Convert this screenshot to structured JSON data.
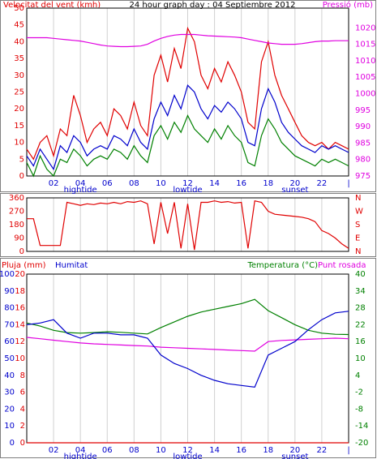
{
  "chart_data": [
    {
      "type": "line",
      "title": "24 hour graph day : 04 Septiembre 2012",
      "ylabel": "Velocitat del vent (kmh)",
      "y2label": "Pressió (mb)",
      "x": [
        0,
        0.5,
        1,
        1.5,
        2,
        2.5,
        3,
        3.5,
        4,
        4.5,
        5,
        5.5,
        6,
        6.5,
        7,
        7.5,
        8,
        8.5,
        9,
        9.5,
        10,
        10.5,
        11,
        11.5,
        12,
        12.5,
        13,
        13.5,
        14,
        14.5,
        15,
        15.5,
        16,
        16.5,
        17,
        17.5,
        18,
        18.5,
        19,
        19.5,
        20,
        20.5,
        21,
        21.5,
        22,
        22.5,
        23,
        23.5,
        24
      ],
      "xlim": [
        0,
        24
      ],
      "xticks": [
        {
          "value": 2,
          "label": "02"
        },
        {
          "value": 4,
          "label": "04"
        },
        {
          "value": 6,
          "label": "06"
        },
        {
          "value": 8,
          "label": "08"
        },
        {
          "value": 10,
          "label": "10"
        },
        {
          "value": 12,
          "label": "12"
        },
        {
          "value": 14,
          "label": "14"
        },
        {
          "value": 16,
          "label": "16"
        },
        {
          "value": 18,
          "label": "18"
        },
        {
          "value": 20,
          "label": "20"
        },
        {
          "value": 22,
          "label": "22"
        },
        {
          "value": 24,
          "label": "|"
        }
      ],
      "annotations": [
        {
          "text": "hightide",
          "x": 4
        },
        {
          "text": "lowtide",
          "x": 12
        },
        {
          "text": "sunset",
          "x": 20
        }
      ],
      "ylim": [
        0,
        50
      ],
      "yticks": [
        0,
        5,
        10,
        15,
        20,
        25,
        30,
        35,
        40,
        45,
        50
      ],
      "ycolor": "#e00000",
      "y2lim": [
        975,
        1026
      ],
      "y2ticks": [
        975,
        980,
        985,
        990,
        995,
        1000,
        1005,
        1010,
        1015,
        1020
      ],
      "y2color": "#e000e0",
      "grid": true,
      "series": [
        {
          "color": "#e00000",
          "values": [
            8,
            5,
            10,
            12,
            6,
            14,
            12,
            24,
            18,
            10,
            14,
            16,
            12,
            20,
            18,
            14,
            22,
            15,
            12,
            30,
            36,
            28,
            38,
            32,
            44,
            40,
            30,
            26,
            32,
            28,
            34,
            30,
            25,
            16,
            14,
            34,
            40,
            30,
            24,
            20,
            16,
            12,
            10,
            9,
            10,
            8,
            10,
            9,
            8
          ]
        },
        {
          "color": "#008000",
          "values": [
            4,
            0,
            6,
            2,
            0,
            5,
            4,
            8,
            6,
            3,
            5,
            6,
            5,
            8,
            7,
            5,
            9,
            6,
            4,
            12,
            15,
            11,
            16,
            13,
            18,
            14,
            12,
            10,
            14,
            11,
            15,
            12,
            10,
            4,
            3,
            12,
            17,
            14,
            10,
            8,
            6,
            5,
            4,
            3,
            5,
            4,
            5,
            4,
            3
          ]
        },
        {
          "color": "#0000cc",
          "values": [
            6,
            3,
            8,
            5,
            2,
            9,
            7,
            12,
            10,
            6,
            8,
            9,
            8,
            12,
            11,
            9,
            14,
            10,
            8,
            17,
            22,
            18,
            24,
            20,
            27,
            25,
            20,
            17,
            21,
            19,
            22,
            20,
            17,
            10,
            9,
            20,
            26,
            22,
            16,
            13,
            11,
            9,
            8,
            7,
            9,
            8,
            9,
            8,
            7
          ]
        },
        {
          "color": "#e000e0",
          "axis": "y2",
          "values": [
            1017,
            1017,
            1017,
            1017,
            1016.8,
            1016.6,
            1016.4,
            1016.2,
            1016,
            1015.6,
            1015.2,
            1014.8,
            1014.5,
            1014.4,
            1014.3,
            1014.3,
            1014.4,
            1014.5,
            1015,
            1016,
            1016.8,
            1017.4,
            1017.8,
            1018,
            1018,
            1018,
            1017.8,
            1017.6,
            1017.5,
            1017.4,
            1017.3,
            1017.2,
            1017,
            1016.6,
            1016.2,
            1015.8,
            1015.4,
            1015.2,
            1015,
            1015,
            1015,
            1015.2,
            1015.5,
            1015.8,
            1016,
            1016,
            1016.1,
            1016.1,
            1016.1
          ]
        }
      ]
    },
    {
      "type": "line",
      "x": [
        0,
        0.5,
        1,
        1.5,
        2,
        2.5,
        3,
        3.5,
        4,
        4.5,
        5,
        5.5,
        6,
        6.5,
        7,
        7.5,
        8,
        8.5,
        9,
        9.5,
        10,
        10.5,
        11,
        11.5,
        12,
        12.5,
        13,
        13.5,
        14,
        14.5,
        15,
        15.5,
        16,
        16.5,
        17,
        17.5,
        18,
        18.5,
        19,
        19.5,
        20,
        20.5,
        21,
        21.5,
        22,
        22.5,
        23,
        23.5,
        24
      ],
      "xlim": [
        0,
        24
      ],
      "xticks": [
        {
          "value": 2,
          "label": "02"
        },
        {
          "value": 4,
          "label": "04"
        },
        {
          "value": 6,
          "label": "06"
        },
        {
          "value": 8,
          "label": "08"
        },
        {
          "value": 10,
          "label": "10"
        },
        {
          "value": 12,
          "label": "12"
        },
        {
          "value": 14,
          "label": "14"
        },
        {
          "value": 16,
          "label": "16"
        },
        {
          "value": 18,
          "label": "18"
        },
        {
          "value": 20,
          "label": "20"
        },
        {
          "value": 22,
          "label": "22"
        },
        {
          "value": 24,
          "label": "|"
        }
      ],
      "show_xtick_labels": false,
      "ylim": [
        0,
        360
      ],
      "yticks": [
        0,
        90,
        180,
        270,
        360
      ],
      "ycolor": "#e00000",
      "y2lim": [
        0,
        360
      ],
      "y2ticks": [
        {
          "value": 0,
          "label": "N"
        },
        {
          "value": 90,
          "label": "E"
        },
        {
          "value": 180,
          "label": "S"
        },
        {
          "value": 270,
          "label": "W"
        },
        {
          "value": 360,
          "label": "N"
        }
      ],
      "y2color": "#e00000",
      "grid": true,
      "series": [
        {
          "color": "#e00000",
          "values": [
            220,
            220,
            40,
            40,
            40,
            40,
            330,
            320,
            310,
            320,
            315,
            325,
            320,
            330,
            320,
            335,
            330,
            340,
            320,
            50,
            330,
            120,
            330,
            20,
            320,
            10,
            330,
            330,
            340,
            330,
            335,
            325,
            330,
            20,
            340,
            330,
            270,
            250,
            245,
            240,
            235,
            230,
            220,
            200,
            140,
            120,
            90,
            50,
            20
          ]
        }
      ]
    },
    {
      "type": "line",
      "ylabel": "Pluja (mm)",
      "ylabel2": "Humitat",
      "y2label": "Temperatura (°C)",
      "y2label2": "Punt rosada",
      "x": [
        0,
        1,
        2,
        3,
        4,
        5,
        6,
        7,
        8,
        9,
        10,
        11,
        12,
        13,
        14,
        15,
        16,
        17,
        18,
        19,
        20,
        21,
        22,
        23,
        24
      ],
      "xlim": [
        0,
        24
      ],
      "xticks": [
        {
          "value": 2,
          "label": "02"
        },
        {
          "value": 4,
          "label": "04"
        },
        {
          "value": 6,
          "label": "06"
        },
        {
          "value": 8,
          "label": "08"
        },
        {
          "value": 10,
          "label": "10"
        },
        {
          "value": 12,
          "label": "12"
        },
        {
          "value": 14,
          "label": "14"
        },
        {
          "value": 16,
          "label": "16"
        },
        {
          "value": 18,
          "label": "18"
        },
        {
          "value": 20,
          "label": "20"
        },
        {
          "value": 22,
          "label": "22"
        },
        {
          "value": 24,
          "label": "|"
        }
      ],
      "annotations": [
        {
          "text": "hightide",
          "x": 4
        },
        {
          "text": "lowtide",
          "x": 12
        },
        {
          "text": "sunset",
          "x": 20
        }
      ],
      "ylim": [
        0,
        100
      ],
      "yticks": [
        0,
        10,
        20,
        30,
        40,
        50,
        60,
        70,
        80,
        90,
        100
      ],
      "ycolor": "#0000cc",
      "y3lim": [
        0,
        20
      ],
      "y3ticks": [
        0,
        2,
        4,
        6,
        8,
        10,
        12,
        14,
        16,
        18,
        20
      ],
      "y3color": "#e00000",
      "y2lim": [
        -20,
        40
      ],
      "y2ticks": [
        -20,
        -14,
        -8,
        -2,
        4,
        10,
        16,
        22,
        28,
        34,
        40
      ],
      "y2color": "#008000",
      "grid": true,
      "series": [
        {
          "color": "#008000",
          "axis": "y2",
          "values": [
            22.6,
            21.5,
            20,
            19.2,
            19,
            19.2,
            19.5,
            19.3,
            19,
            18.7,
            21,
            23,
            25,
            26.5,
            27.5,
            28.5,
            29.5,
            31,
            27,
            24.5,
            22,
            20,
            19,
            18.6,
            18.5
          ]
        },
        {
          "color": "#e000e0",
          "axis": "y2",
          "values": [
            17.5,
            17,
            16.5,
            16,
            15.5,
            15.2,
            15,
            14.8,
            14.6,
            14.4,
            14,
            13.8,
            13.6,
            13.4,
            13.2,
            13,
            12.8,
            12.6,
            16,
            16.4,
            16.6,
            16.8,
            17,
            17.2,
            17
          ]
        },
        {
          "color": "#0000cc",
          "values": [
            70,
            71,
            73,
            65,
            62,
            65,
            65,
            64,
            64,
            62,
            52,
            47,
            44,
            40,
            37,
            35,
            34,
            33,
            52,
            56,
            60,
            67,
            73,
            77,
            78
          ]
        },
        {
          "color": "#e00000",
          "axis": "y3",
          "values": [
            0,
            0,
            0,
            0,
            0,
            0,
            0,
            0,
            0,
            0,
            0,
            0,
            0,
            0,
            0,
            0,
            0,
            0,
            0,
            0,
            0,
            0,
            0,
            0,
            0
          ]
        }
      ]
    }
  ]
}
